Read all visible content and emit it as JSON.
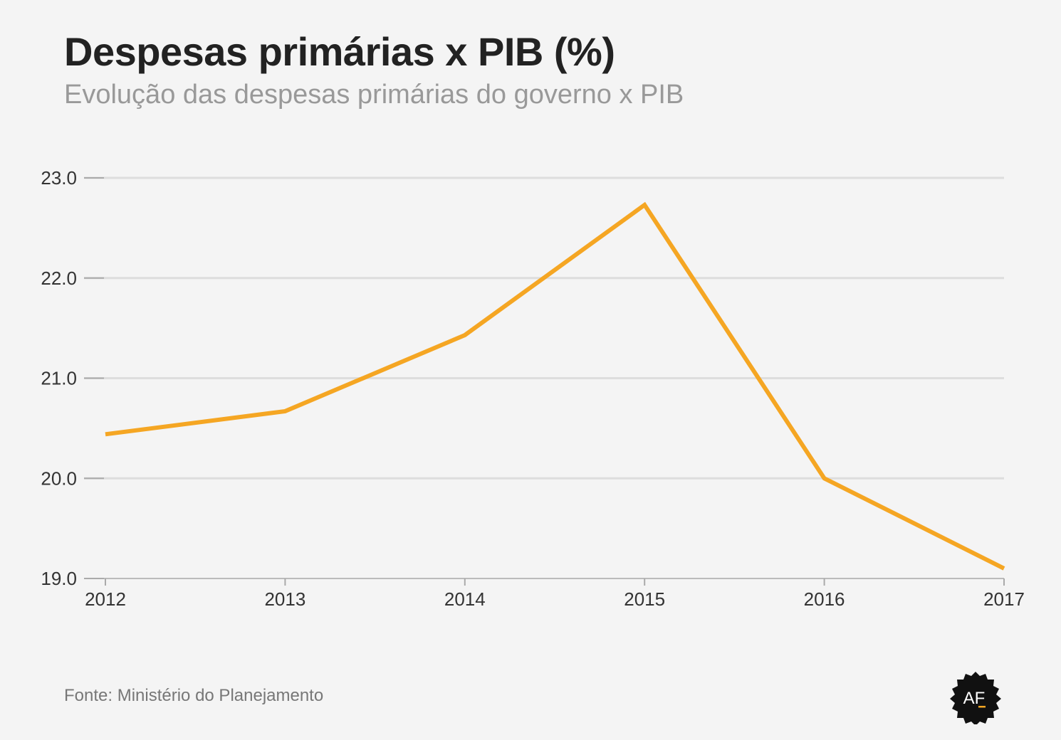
{
  "header": {
    "title": "Despesas primárias x PIB (%)",
    "subtitle": "Evolução das despesas primárias do governo x PIB"
  },
  "footer": {
    "source": "Fonte: Ministério do Planejamento",
    "logo_text": "AF"
  },
  "chart_data": {
    "type": "line",
    "x": [
      "2012",
      "2013",
      "2014",
      "2015",
      "2016",
      "2017"
    ],
    "series": [
      {
        "values": [
          20.44,
          20.67,
          21.43,
          22.73,
          20.0,
          19.1
        ]
      }
    ],
    "xlabel": "",
    "ylabel": "",
    "ylim": [
      19.0,
      23.0
    ],
    "yticks": [
      "19.0",
      "20.0",
      "21.0",
      "22.0",
      "23.0"
    ],
    "grid": true,
    "line_color": "#f5a623",
    "grid_color": "#dddddd"
  }
}
